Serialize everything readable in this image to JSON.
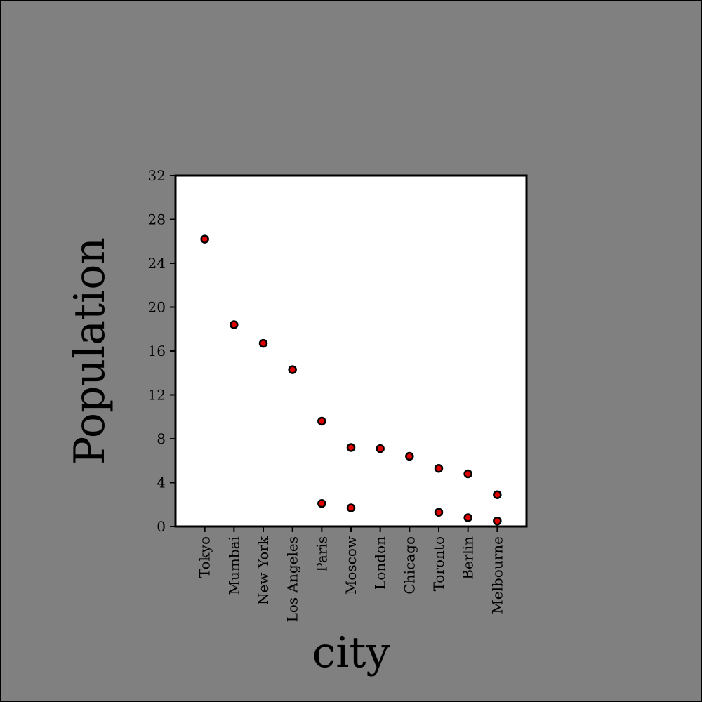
{
  "chart_data": {
    "type": "scatter",
    "title": "",
    "xlabel": "city",
    "ylabel": "Population",
    "categories": [
      "Tokyo",
      "Mumbai",
      "New York",
      "Los Angeles",
      "Paris",
      "Moscow",
      "London",
      "Chicago",
      "Toronto",
      "Berlin",
      "Melbourne"
    ],
    "points": [
      {
        "x": "Tokyo",
        "y": 26.2
      },
      {
        "x": "Mumbai",
        "y": 18.4
      },
      {
        "x": "New York",
        "y": 16.7
      },
      {
        "x": "Los Angeles",
        "y": 14.3
      },
      {
        "x": "Paris",
        "y": 9.6
      },
      {
        "x": "Paris",
        "y": 2.1
      },
      {
        "x": "Moscow",
        "y": 7.2
      },
      {
        "x": "Moscow",
        "y": 1.7
      },
      {
        "x": "London",
        "y": 7.1
      },
      {
        "x": "Chicago",
        "y": 6.4
      },
      {
        "x": "Toronto",
        "y": 5.3
      },
      {
        "x": "Toronto",
        "y": 1.3
      },
      {
        "x": "Berlin",
        "y": 4.8
      },
      {
        "x": "Berlin",
        "y": 0.8
      },
      {
        "x": "Melbourne",
        "y": 2.9
      },
      {
        "x": "Melbourne",
        "y": 0.5
      }
    ],
    "yticks": [
      0,
      4,
      8,
      12,
      16,
      20,
      24,
      28,
      32
    ],
    "ylim": [
      0,
      32
    ],
    "grid": false,
    "legend": "none",
    "colors": {
      "background": "#808080",
      "plot_background": "#ffffff",
      "marker_fill": "#e00000",
      "marker_edge": "#000000"
    }
  }
}
